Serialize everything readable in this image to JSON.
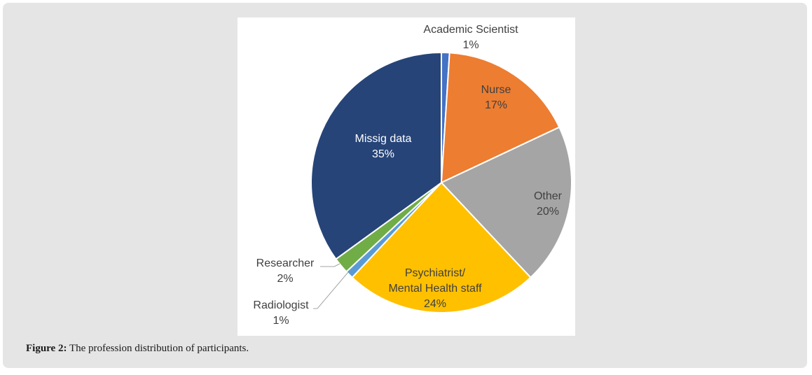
{
  "chart_data": {
    "type": "pie",
    "title": "",
    "slices": [
      {
        "label": "Academic Scientist",
        "percent_label": "1%",
        "value": 1,
        "color": "#4472c4",
        "label_color": "#404040"
      },
      {
        "label": "Nurse",
        "percent_label": "17%",
        "value": 17,
        "color": "#ed7d31",
        "label_color": "#404040"
      },
      {
        "label": "Other",
        "percent_label": "20%",
        "value": 20,
        "color": "#a5a5a5",
        "label_color": "#404040"
      },
      {
        "label": "Psychiatrist/ Mental Health staff",
        "label_lines": [
          "Psychiatrist/",
          "Mental Health staff"
        ],
        "percent_label": "24%",
        "value": 24,
        "color": "#ffc000",
        "label_color": "#404040"
      },
      {
        "label": "Radiologist",
        "percent_label": "1%",
        "value": 1,
        "color": "#5b9bd5",
        "label_color": "#404040"
      },
      {
        "label": "Researcher",
        "percent_label": "2%",
        "value": 2,
        "color": "#70ad47",
        "label_color": "#404040"
      },
      {
        "label": "Missig data",
        "percent_label": "35%",
        "value": 35,
        "color": "#264478",
        "label_color": "#ffffff"
      }
    ],
    "start_angle_deg": 0,
    "direction": "clockwise",
    "legend": "none"
  },
  "caption": {
    "prefix": "Figure 2:",
    "text": " The profession distribution of participants."
  }
}
